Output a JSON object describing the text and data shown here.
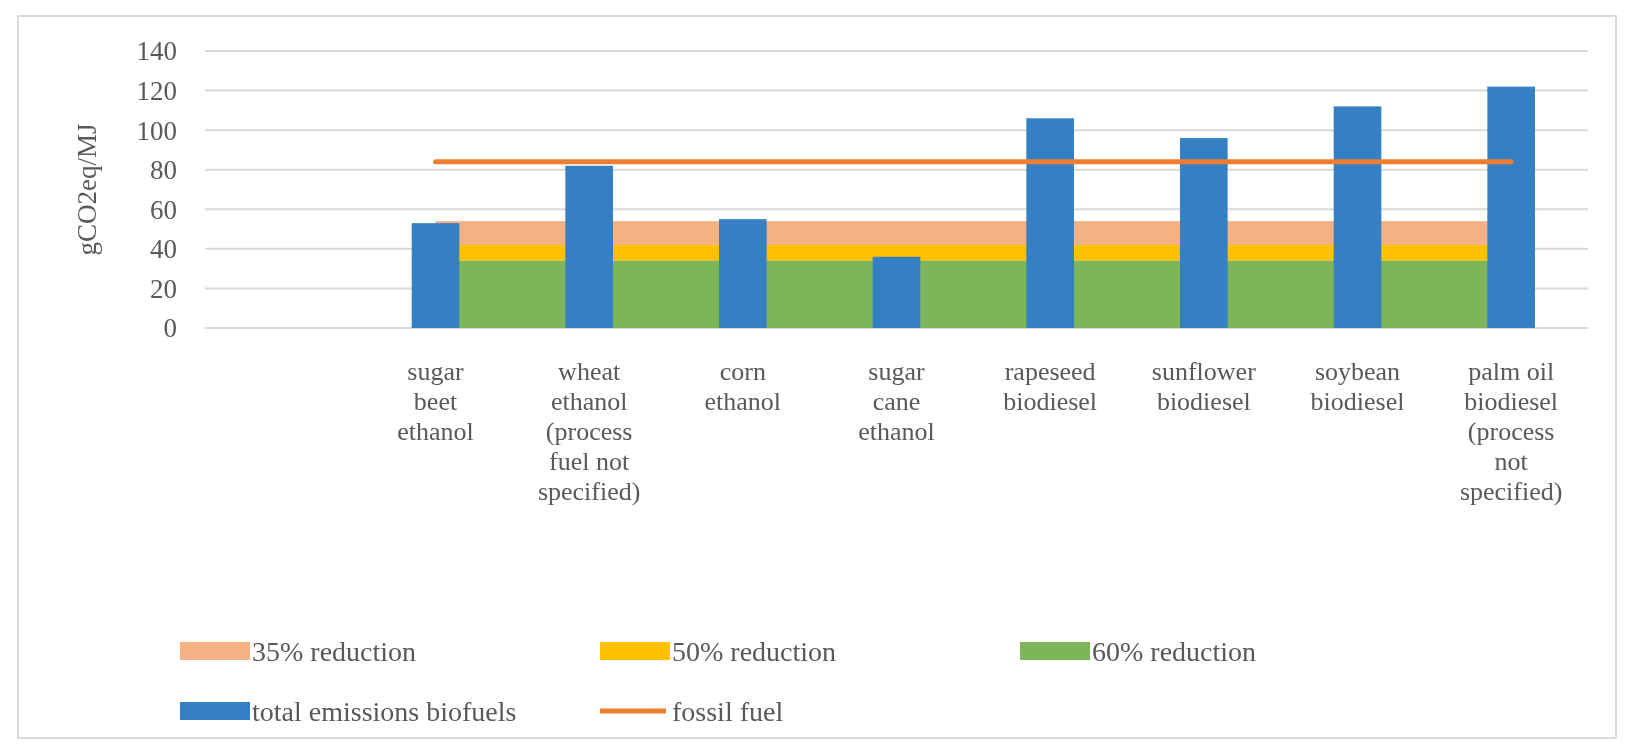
{
  "chart_data": {
    "type": "bar",
    "ylabel": "gCO2eq/MJ",
    "categories": [
      null,
      "sugar beet ethanol",
      "wheat ethanol (process fuel not specified)",
      "corn ethanol",
      "sugar cane ethanol",
      "rapeseed biodiesel",
      "sunflower biodiesel",
      "soybean biodiesel",
      "palm oil biodiesel (process not specified)"
    ],
    "series": [
      {
        "name": "total emissions biofuels",
        "color": "#3480c2",
        "values": [
          null,
          53,
          82,
          55,
          36,
          106,
          96,
          112,
          122
        ]
      },
      {
        "name": "fossil fuel",
        "type": "line",
        "color": "#ed7d31",
        "values": [
          null,
          84,
          84,
          84,
          84,
          84,
          84,
          84,
          84
        ]
      }
    ],
    "bands": [
      {
        "axis": "y",
        "from": 42,
        "to": 54,
        "label": "35% reduction",
        "color": "#f4b183"
      },
      {
        "axis": "y",
        "from": 34,
        "to": 42,
        "label": "50% reduction",
        "color": "#ffc000"
      },
      {
        "axis": "y",
        "from": 0,
        "to": 34,
        "label": "60% reduction",
        "color": "#7eb55a"
      }
    ],
    "ylim": [
      0,
      140
    ],
    "yticks": [
      0,
      20,
      40,
      60,
      80,
      100,
      120,
      140
    ],
    "grid": "y",
    "legend": "bottom"
  }
}
